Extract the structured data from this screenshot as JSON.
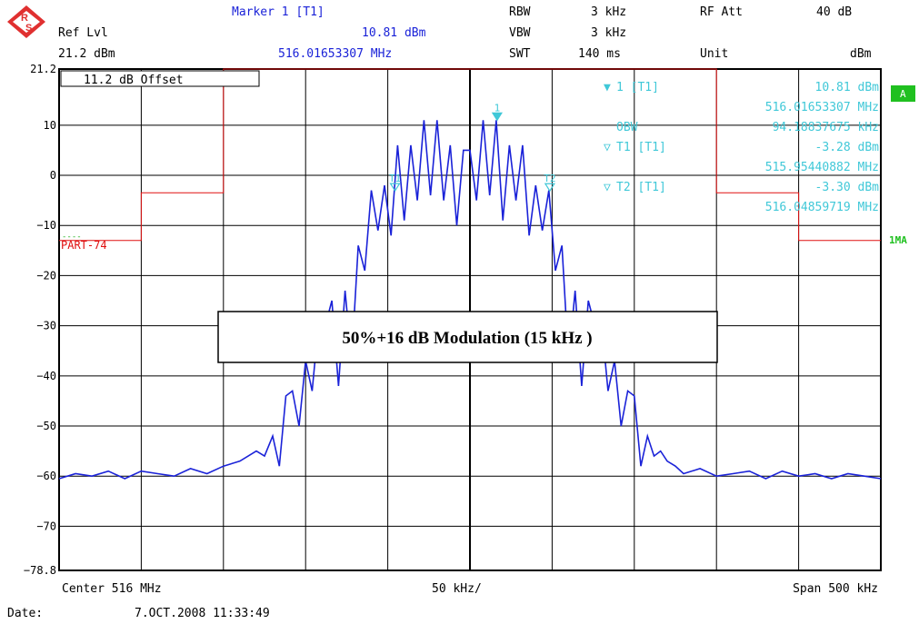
{
  "header": {
    "marker_title": "Marker 1 [T1]",
    "ref_lvl_label": "Ref Lvl",
    "ref_lvl_value": "21.2 dBm",
    "marker_level": "10.81 dBm",
    "marker_freq": "516.01653307 MHz",
    "rbw_label": "RBW",
    "rbw_value": "3 kHz",
    "vbw_label": "VBW",
    "vbw_value": "3 kHz",
    "swt_label": "SWT",
    "swt_value": "140 ms",
    "rfatt_label": "RF Att",
    "rfatt_value": "40 dB",
    "unit_label": "Unit",
    "unit_value": "dBm"
  },
  "footer": {
    "center": "Center 516 MHz",
    "div": "50 kHz/",
    "span": "Span 500 kHz",
    "date_label": "Date:",
    "date_value": "7.OCT.2008  11:33:49"
  },
  "offset_label": "11.2 dB Offset",
  "limit_name": "PART-74",
  "trace_badge": "A",
  "side_label": "1MA",
  "annotation": "50%+16 dB Modulation (15 kHz )",
  "marker_info": [
    {
      "sym": "▼",
      "name": "1 [T1]",
      "value": "10.81 dBm"
    },
    {
      "sym": "",
      "name": "",
      "value": "516.01653307 MHz"
    },
    {
      "sym": "",
      "name": "OBW",
      "value": "94.18837675 kHz"
    },
    {
      "sym": "▽",
      "name": "T1 [T1]",
      "value": "-3.28 dBm"
    },
    {
      "sym": "",
      "name": "",
      "value": "515.95440882 MHz"
    },
    {
      "sym": "▽",
      "name": "T2 [T1]",
      "value": "-3.30 dBm"
    },
    {
      "sym": "",
      "name": "",
      "value": "516.04859719 MHz"
    }
  ],
  "chart_data": {
    "type": "line",
    "title": "50%+16 dB Modulation (15 kHz )",
    "xlabel": "",
    "ylabel": "",
    "x_unit": "MHz",
    "y_unit": "dBm",
    "xlim": [
      515.75,
      516.25
    ],
    "ylim": [
      -78.8,
      21.2
    ],
    "yticks": [
      21.2,
      10,
      0,
      -10,
      -20,
      -30,
      -40,
      -50,
      -60,
      -70,
      -78.8
    ],
    "ytick_labels": [
      "21.2",
      "10",
      "0",
      "−10",
      "−20",
      "−30",
      "−40",
      "−50",
      "−60",
      "−70",
      "−78.8"
    ],
    "grid": true,
    "series": [
      {
        "color": "#1a22d8",
        "x": [
          515.75,
          515.76,
          515.77,
          515.78,
          515.79,
          515.8,
          515.81,
          515.82,
          515.83,
          515.84,
          515.85,
          515.86,
          515.87,
          515.875,
          515.88,
          515.884,
          515.888,
          515.892,
          515.896,
          515.9,
          515.904,
          515.908,
          515.912,
          515.916,
          515.92,
          515.924,
          515.928,
          515.932,
          515.936,
          515.94,
          515.944,
          515.948,
          515.952,
          515.956,
          515.96,
          515.964,
          515.968,
          515.972,
          515.976,
          515.98,
          515.984,
          515.988,
          515.992,
          515.996,
          516.0,
          516.004,
          516.008,
          516.012,
          516.016,
          516.02,
          516.024,
          516.028,
          516.032,
          516.036,
          516.04,
          516.044,
          516.048,
          516.052,
          516.056,
          516.06,
          516.064,
          516.068,
          516.072,
          516.076,
          516.08,
          516.084,
          516.088,
          516.092,
          516.096,
          516.1,
          516.104,
          516.108,
          516.112,
          516.116,
          516.12,
          516.125,
          516.13,
          516.14,
          516.15,
          516.16,
          516.17,
          516.18,
          516.19,
          516.2,
          516.21,
          516.22,
          516.23,
          516.24,
          516.25
        ],
        "y": [
          -60.5,
          -59.5,
          -60,
          -59,
          -60.5,
          -59,
          -59.5,
          -60,
          -58.5,
          -59.5,
          -58,
          -57,
          -55,
          -56,
          -52,
          -58,
          -44,
          -43,
          -50,
          -37,
          -43,
          -29,
          -30,
          -25,
          -42,
          -23,
          -37,
          -14,
          -19,
          -3,
          -11,
          -2,
          -12,
          6,
          -9,
          6,
          -5,
          11,
          -4,
          11,
          -5,
          6,
          -10,
          5,
          5,
          -5,
          11,
          -4,
          11,
          -9,
          6,
          -5,
          6,
          -12,
          -2,
          -11,
          -3,
          -19,
          -14,
          -37,
          -23,
          -42,
          -25,
          -30,
          -29,
          -43,
          -37,
          -50,
          -43,
          -44,
          -58,
          -52,
          -56,
          -55,
          -57,
          -58,
          -59.5,
          -58.5,
          -60,
          -59.5,
          -59,
          -60.5,
          -59,
          -60,
          -59.5,
          -60.5,
          -59.5,
          -60,
          -60.5
        ]
      }
    ],
    "limit_line": {
      "name": "PART-74",
      "color": "#e01010",
      "x": [
        515.75,
        515.8,
        515.8,
        515.85,
        515.85,
        516.15,
        516.15,
        516.2,
        516.2,
        516.25
      ],
      "y": [
        -13,
        -13,
        -3.5,
        -3.5,
        21.2,
        21.2,
        -3.5,
        -3.5,
        -13,
        -13
      ]
    },
    "markers": [
      {
        "label": "1",
        "x": 516.01653307,
        "y": 10.81,
        "color": "#40c8d8",
        "type": "filled"
      },
      {
        "label": "T1",
        "x": 515.95440882,
        "y": -3.28,
        "color": "#40c8d8",
        "type": "open"
      },
      {
        "label": "T2",
        "x": 516.04859719,
        "y": -3.3,
        "color": "#40c8d8",
        "type": "open"
      }
    ]
  }
}
